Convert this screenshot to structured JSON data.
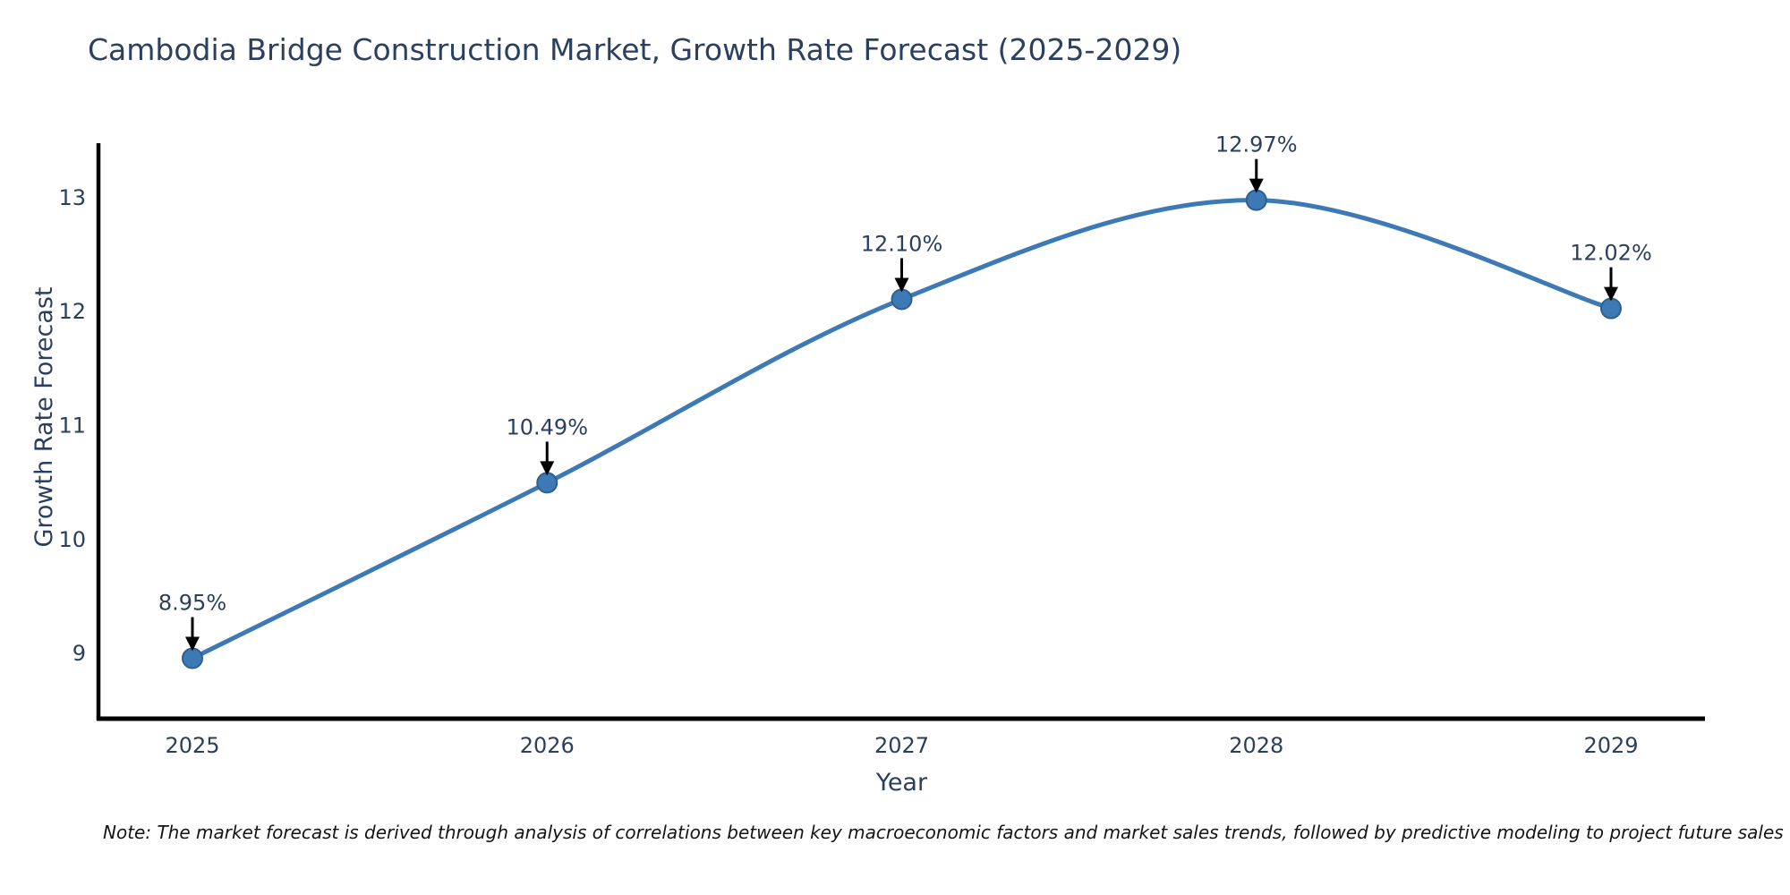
{
  "chart": {
    "note": "Note: The market forecast is derived through analysis of correlations between key macroeconomic factors and market sales trends, followed by predictive modeling to project future sales"
  },
  "chart_data": {
    "type": "line",
    "title": "Cambodia Bridge Construction Market, Growth Rate Forecast (2025-2029)",
    "xlabel": "Year",
    "ylabel": "Growth Rate Forecast",
    "categories": [
      "2025",
      "2026",
      "2027",
      "2028",
      "2029"
    ],
    "values": [
      8.95,
      10.49,
      12.1,
      12.97,
      12.02
    ],
    "point_labels": [
      "8.95%",
      "10.49%",
      "12.10%",
      "12.97%",
      "12.02%"
    ],
    "yticks": [
      9,
      10,
      11,
      12,
      13
    ],
    "ylim": [
      8.42,
      13.47
    ],
    "line_shape": "spline",
    "grid": false,
    "legend_position": "none",
    "colors": {
      "line": "#3d7ab5",
      "marker_fill": "#3d7ab5",
      "marker_edge": "#2e5f8f",
      "axis_line": "#000000",
      "tick_text": "#2a3f5f",
      "axis_title_text": "#2a3f5f",
      "annotation_text": "#2a3f5f",
      "annotation_arrow": "#000000",
      "title_text": "#2b3f5e",
      "note_text": "#141414",
      "background": "#ffffff"
    }
  }
}
